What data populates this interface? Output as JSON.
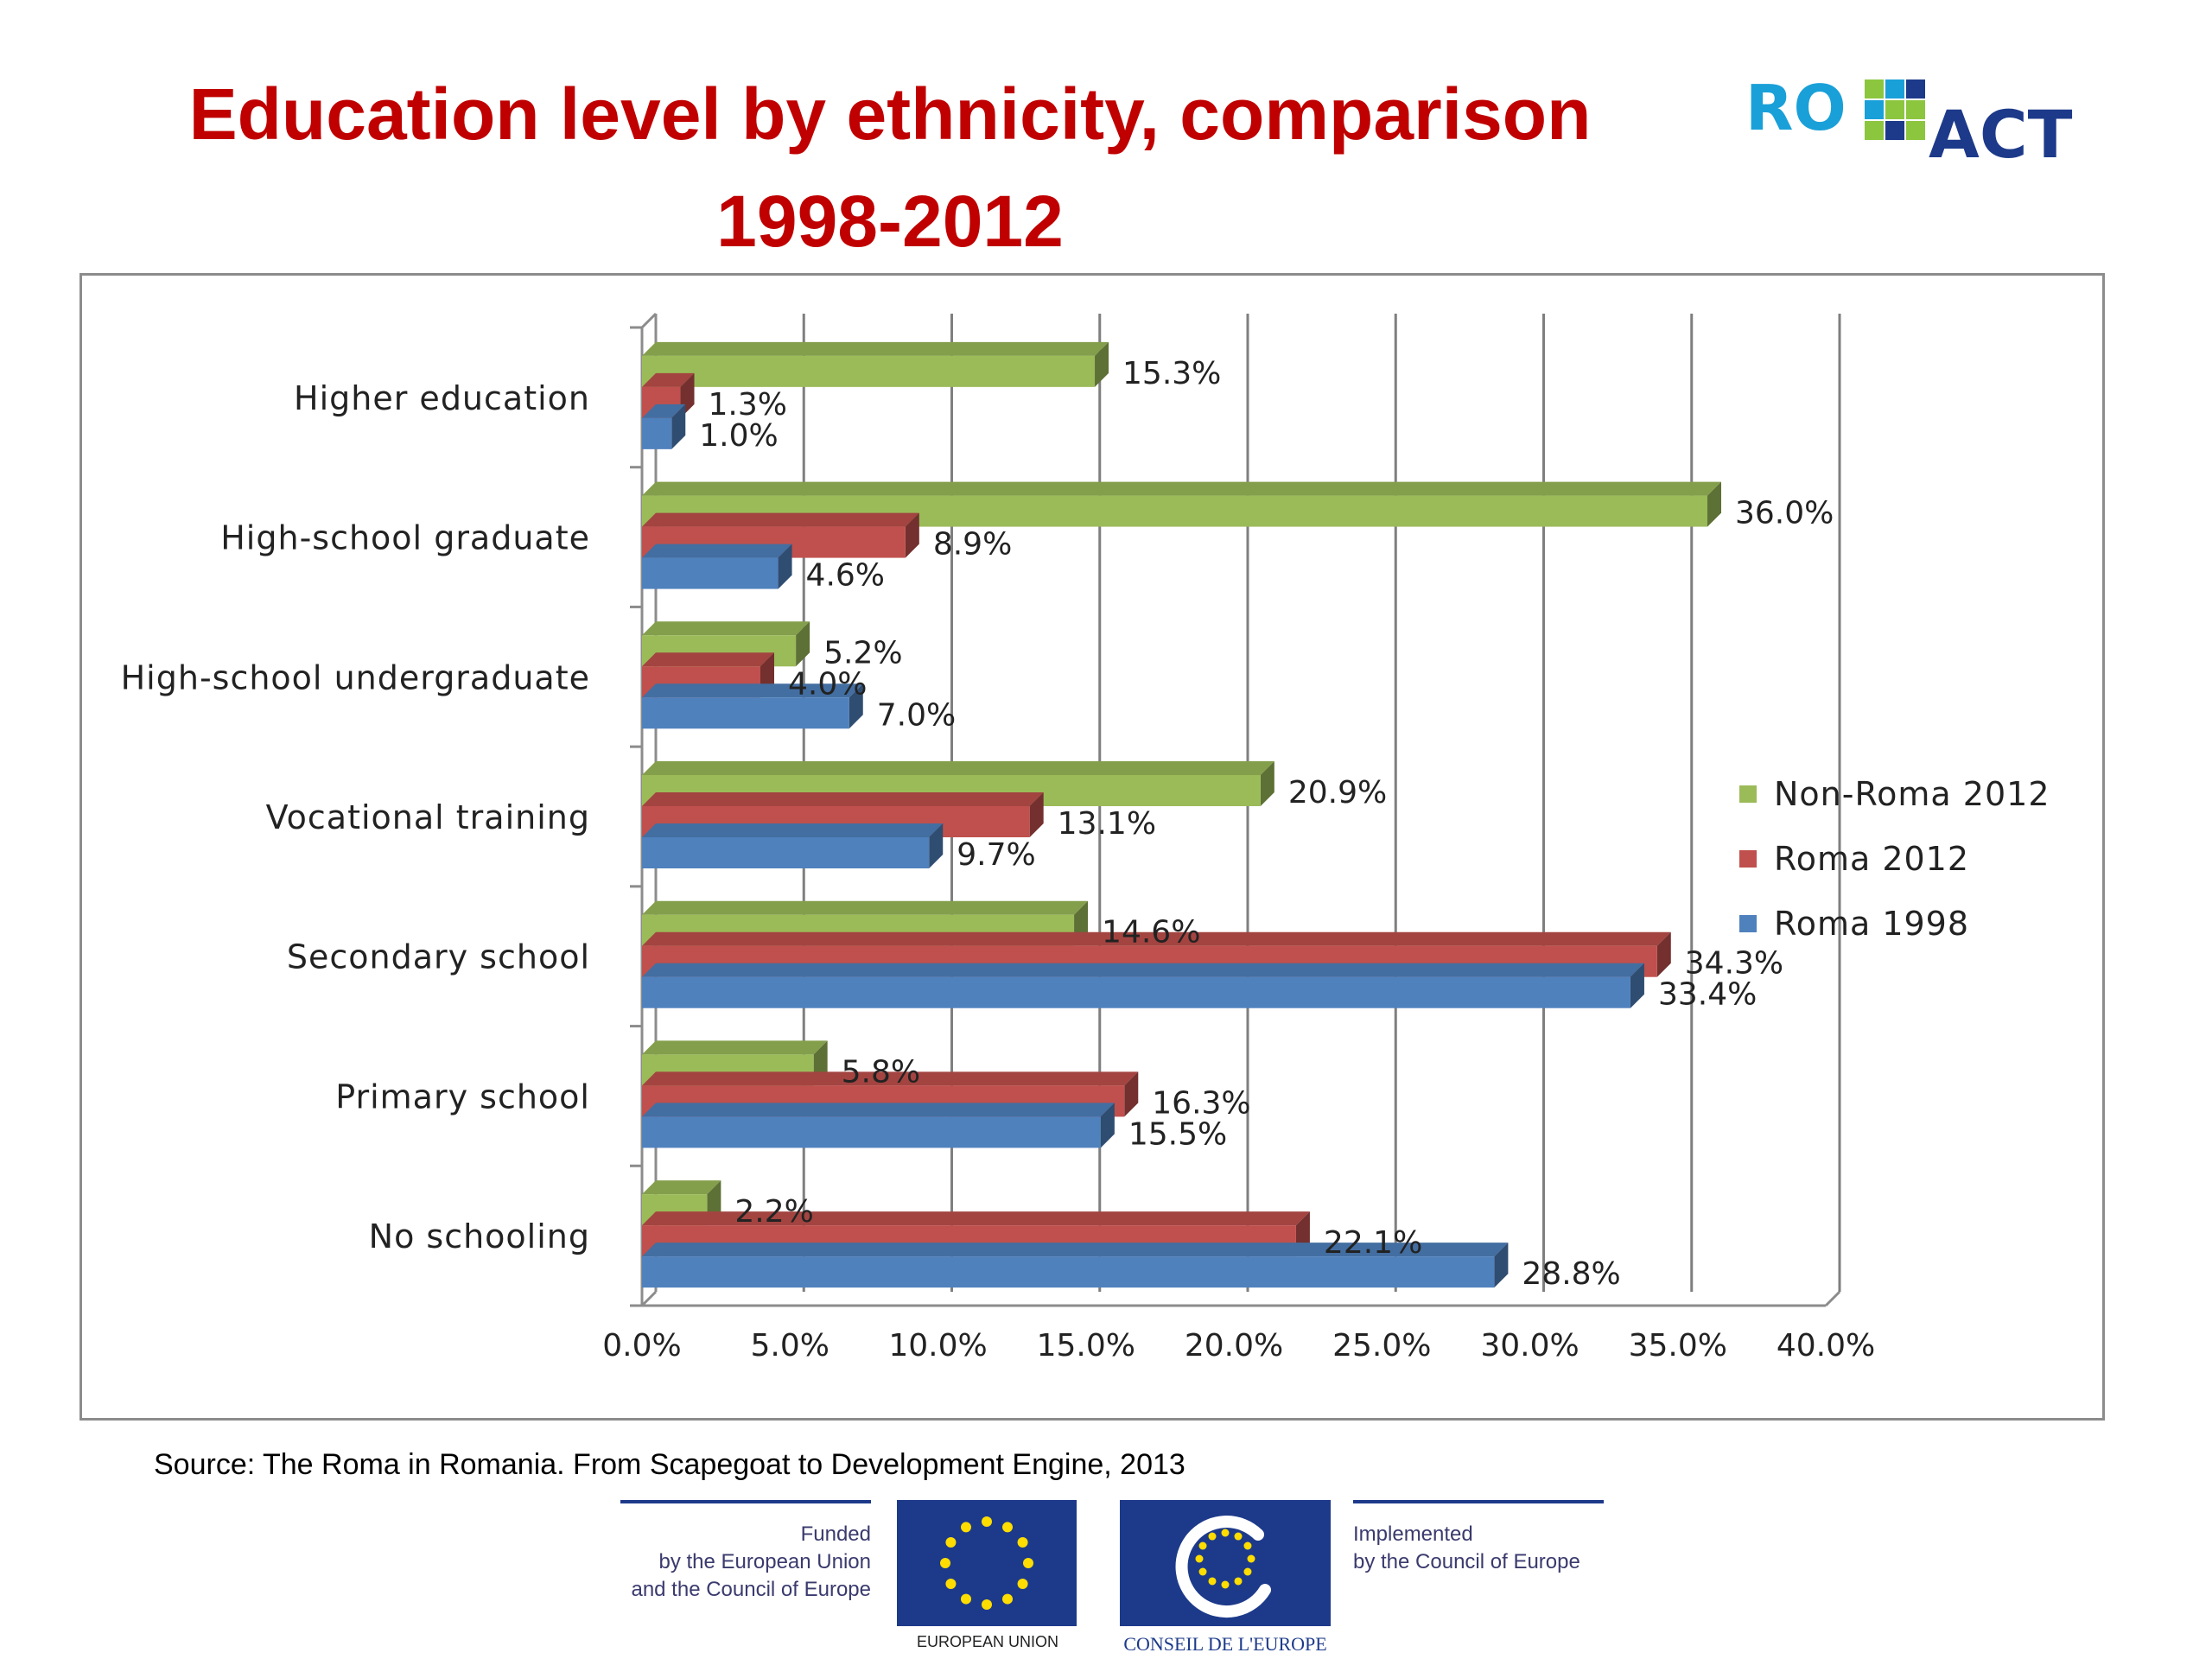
{
  "title": {
    "line1": "Education level by ethnicity, comparison",
    "line2": "1998-2012"
  },
  "logo": {
    "text_left": "RO",
    "text_right": "ACT",
    "colors": [
      "#1aa0d8",
      "#8cc63f",
      "#1d3a8a"
    ]
  },
  "chart_data": {
    "type": "bar",
    "orientation": "horizontal",
    "style": "3d",
    "categories": [
      "Higher education",
      "High-school graduate",
      "High-school undergraduate",
      "Vocational training",
      "Secondary school",
      "Primary school",
      "No schooling"
    ],
    "series": [
      {
        "name": "Non-Roma 2012",
        "color": "#9bbb59",
        "values": [
          15.3,
          36.0,
          5.2,
          20.9,
          14.6,
          5.8,
          2.2
        ],
        "labels": [
          "15.3%",
          "36.0%",
          "5.2%",
          "20.9%",
          "14.6%",
          "5.8%",
          "2.2%"
        ]
      },
      {
        "name": "Roma 2012",
        "color": "#c0504d",
        "values": [
          1.3,
          8.9,
          4.0,
          13.1,
          34.3,
          16.3,
          22.1
        ],
        "labels": [
          "1.3%",
          "8.9%",
          "4.0%",
          "13.1%",
          "34.3%",
          "16.3%",
          "22.1%"
        ]
      },
      {
        "name": "Roma 1998",
        "color": "#4f81bd",
        "values": [
          1.0,
          4.6,
          7.0,
          9.7,
          33.4,
          15.5,
          28.8
        ],
        "labels": [
          "1.0%",
          "4.6%",
          "7.0%",
          "9.7%",
          "33.4%",
          "15.5%",
          "28.8%"
        ]
      }
    ],
    "xlim": [
      0,
      40
    ],
    "xticks": [
      "0.0%",
      "5.0%",
      "10.0%",
      "15.0%",
      "20.0%",
      "25.0%",
      "30.0%",
      "35.0%",
      "40.0%"
    ],
    "grid": true,
    "legend": "right"
  },
  "source": "Source: The Roma in Romania. From Scapegoat to Development Engine, 2013",
  "footer": {
    "funded_lines": [
      "Funded",
      "by the European Union",
      "and the Council of Europe"
    ],
    "eu_label": "EUROPEAN UNION",
    "coe_label": "CONSEIL DE L'EUROPE",
    "implemented_lines": [
      "Implemented",
      "by the Council of Europe"
    ]
  }
}
